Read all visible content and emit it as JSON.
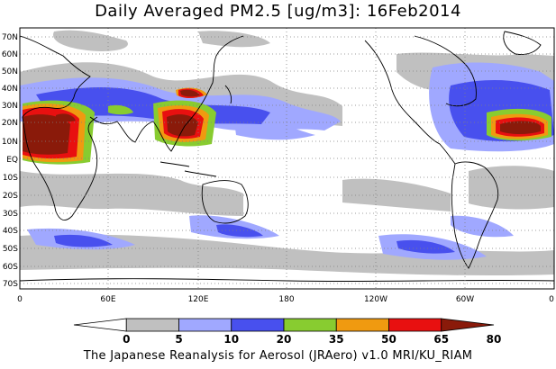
{
  "title": "Daily Averaged PM2.5 [ug/m3]: 16Feb2014",
  "footer": "The Japanese Reanalysis for Aerosol (JRAero) v1.0 MRI/KU_RIAM",
  "lat_labels": [
    "70N",
    "60N",
    "50N",
    "40N",
    "30N",
    "20N",
    "10N",
    "EQ",
    "10S",
    "20S",
    "30S",
    "40S",
    "50S",
    "60S",
    "70S"
  ],
  "lon_labels": [
    "0",
    "60E",
    "120E",
    "180",
    "120W",
    "60W",
    "0"
  ],
  "colorbar": {
    "levels": [
      "0",
      "5",
      "10",
      "20",
      "35",
      "50",
      "65",
      "80"
    ],
    "colors": [
      "#ffffff",
      "#c0c0c0",
      "#a0a8ff",
      "#4850ee",
      "#88cc30",
      "#f09a10",
      "#e81010",
      "#8a1a0a"
    ]
  }
}
